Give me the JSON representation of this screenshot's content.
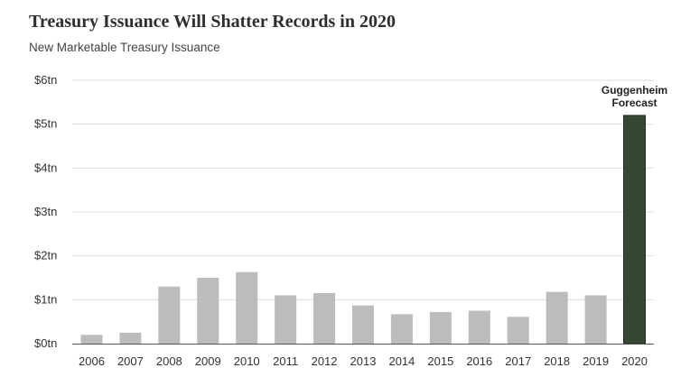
{
  "title": "Treasury Issuance Will Shatter Records in 2020",
  "subtitle": "New Marketable Treasury Issuance",
  "chart_data": {
    "type": "bar",
    "title": "Treasury Issuance Will Shatter Records in 2020",
    "subtitle": "New Marketable Treasury Issuance",
    "xlabel": "",
    "ylabel": "",
    "categories": [
      "2006",
      "2007",
      "2008",
      "2009",
      "2010",
      "2011",
      "2012",
      "2013",
      "2014",
      "2015",
      "2016",
      "2017",
      "2018",
      "2019",
      "2020"
    ],
    "values": [
      0.2,
      0.25,
      1.3,
      1.5,
      1.63,
      1.1,
      1.15,
      0.87,
      0.67,
      0.72,
      0.75,
      0.61,
      1.18,
      1.1,
      5.2
    ],
    "value_unit": "tn USD",
    "ylim": [
      0,
      6
    ],
    "yticks": [
      0,
      1,
      2,
      3,
      4,
      5,
      6
    ],
    "ytick_labels": [
      "$0tn",
      "$1tn",
      "$2tn",
      "$3tn",
      "$4tn",
      "$5tn",
      "$6tn"
    ],
    "grid": true,
    "legend": "none",
    "colors": {
      "bar": "#bdbbbb",
      "highlight_bar": "#344834",
      "highlight_border": "#1f2c1f",
      "grid": "#dcdcdc",
      "axis": "#555555"
    },
    "highlight_category": "2020",
    "annotation": {
      "category": "2020",
      "lines": [
        "Guggenheim",
        "Forecast"
      ]
    }
  }
}
